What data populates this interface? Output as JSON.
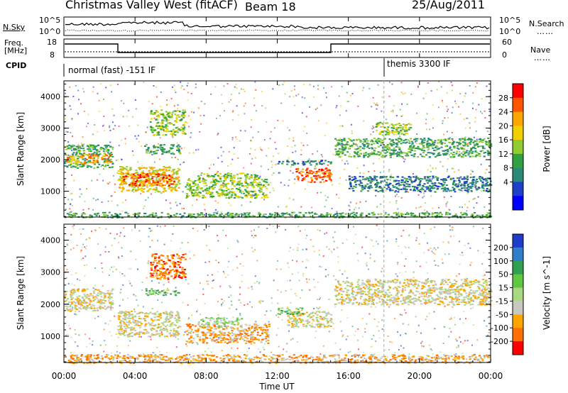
{
  "header": {
    "title": "Christmas Valley West (fitACF)",
    "beam": "Beam 18",
    "date": "25/Aug/2011"
  },
  "noise_panel": {
    "left_label": "N.Sky",
    "right_label": "N.Search",
    "ticks_left": [
      "10^5",
      "10^0"
    ],
    "ticks_right": [
      "10^5",
      "10^0"
    ]
  },
  "freq_panel": {
    "left_label_line1": "Freq.",
    "left_label_line2": "[MHz]",
    "left_ticks": [
      "18",
      "8"
    ],
    "right_label": "Nave",
    "right_ticks": [
      "60",
      "0"
    ]
  },
  "cpid_panel": {
    "label": "CPID",
    "modes": [
      "normal (fast) -151 IF",
      "themis 3300 IF"
    ]
  },
  "time_axis": {
    "label": "Time UT",
    "ticks": [
      "00:00",
      "04:00",
      "08:00",
      "12:00",
      "16:00",
      "20:00",
      "00:00"
    ]
  },
  "chart_data": [
    {
      "type": "heatmap",
      "title": "Power",
      "ylabel": "Slant Range [km]",
      "xlabel": "Time UT",
      "yticks": [
        "1000",
        "2000",
        "3000",
        "4000"
      ],
      "ylim": [
        180,
        4500
      ],
      "xlim_hours": [
        0,
        24
      ],
      "colorbar_label": "Power [dB]",
      "colorbar_ticks": [
        "28",
        "24",
        "20",
        "16",
        "12",
        "8",
        "4"
      ],
      "colorbar_colors": [
        "#ff0000",
        "#ff5500",
        "#ffa500",
        "#f0d000",
        "#90cc30",
        "#30a040",
        "#2a8a7a",
        "#1e40c8",
        "#0000ff"
      ],
      "regions": [
        {
          "t0": 0.0,
          "t1": 2.7,
          "r0": 1750,
          "r1": 2500,
          "level": 3
        },
        {
          "t0": 0.1,
          "t1": 2.6,
          "r0": 1900,
          "r1": 2200,
          "level": 6
        },
        {
          "t0": 3.0,
          "t1": 6.5,
          "r0": 1000,
          "r1": 1800,
          "level": 5
        },
        {
          "t0": 3.2,
          "t1": 6.2,
          "r0": 1200,
          "r1": 1600,
          "level": 7
        },
        {
          "t0": 4.5,
          "t1": 6.5,
          "r0": 2200,
          "r1": 2500,
          "level": 3
        },
        {
          "t0": 4.8,
          "t1": 6.8,
          "r0": 2800,
          "r1": 3600,
          "level": 4
        },
        {
          "t0": 6.8,
          "t1": 11.5,
          "r0": 800,
          "r1": 1400,
          "level": 4
        },
        {
          "t0": 7.5,
          "t1": 11.0,
          "r0": 1400,
          "r1": 1600,
          "level": 4
        },
        {
          "t0": 13.0,
          "t1": 15.0,
          "r0": 1300,
          "r1": 1750,
          "level": 7
        },
        {
          "t0": 12.0,
          "t1": 15.0,
          "r0": 1850,
          "r1": 2000,
          "level": 2
        },
        {
          "t0": 15.2,
          "t1": 24.0,
          "r0": 2100,
          "r1": 2700,
          "level": 3
        },
        {
          "t0": 17.5,
          "t1": 19.5,
          "r0": 2800,
          "r1": 3200,
          "level": 4
        },
        {
          "t0": 16.0,
          "t1": 24.0,
          "r0": 1000,
          "r1": 1500,
          "level": 2
        },
        {
          "t0": 0.0,
          "t1": 24.0,
          "r0": 180,
          "r1": 350,
          "level": 3
        }
      ]
    },
    {
      "type": "heatmap",
      "title": "Velocity",
      "ylabel": "Slant Range [km]",
      "xlabel": "Time UT",
      "yticks": [
        "1000",
        "2000",
        "3000",
        "4000"
      ],
      "ylim": [
        180,
        4500
      ],
      "xlim_hours": [
        0,
        24
      ],
      "colorbar_label": "Velocity [m s^-1]",
      "colorbar_ticks": [
        "200",
        "100",
        "50",
        "15",
        "-15",
        "-50",
        "-100",
        "-200"
      ],
      "colorbar_colors": [
        "#1e3cc8",
        "#2e80c8",
        "#30a050",
        "#60c840",
        "#a8d880",
        "#c8c8c0",
        "#ffa500",
        "#ff7000",
        "#ff0000"
      ],
      "regions": [
        {
          "t0": 0.0,
          "t1": 2.7,
          "r0": 1800,
          "r1": 2500,
          "level": 5
        },
        {
          "t0": 3.0,
          "t1": 6.5,
          "r0": 1000,
          "r1": 1800,
          "level": 5
        },
        {
          "t0": 4.8,
          "t1": 6.8,
          "r0": 2800,
          "r1": 3600,
          "level": 7
        },
        {
          "t0": 4.5,
          "t1": 6.5,
          "r0": 2300,
          "r1": 2500,
          "level": 3
        },
        {
          "t0": 6.8,
          "t1": 11.5,
          "r0": 800,
          "r1": 1400,
          "level": 6
        },
        {
          "t0": 7.5,
          "t1": 10.0,
          "r0": 1300,
          "r1": 1600,
          "level": 4
        },
        {
          "t0": 12.5,
          "t1": 15.0,
          "r0": 1300,
          "r1": 1800,
          "level": 5
        },
        {
          "t0": 12.0,
          "t1": 13.5,
          "r0": 1700,
          "r1": 1900,
          "level": 3
        },
        {
          "t0": 15.2,
          "t1": 24.0,
          "r0": 2000,
          "r1": 2800,
          "level": 5
        },
        {
          "t0": 0.0,
          "t1": 24.0,
          "r0": 180,
          "r1": 450,
          "level": 6
        }
      ]
    }
  ]
}
